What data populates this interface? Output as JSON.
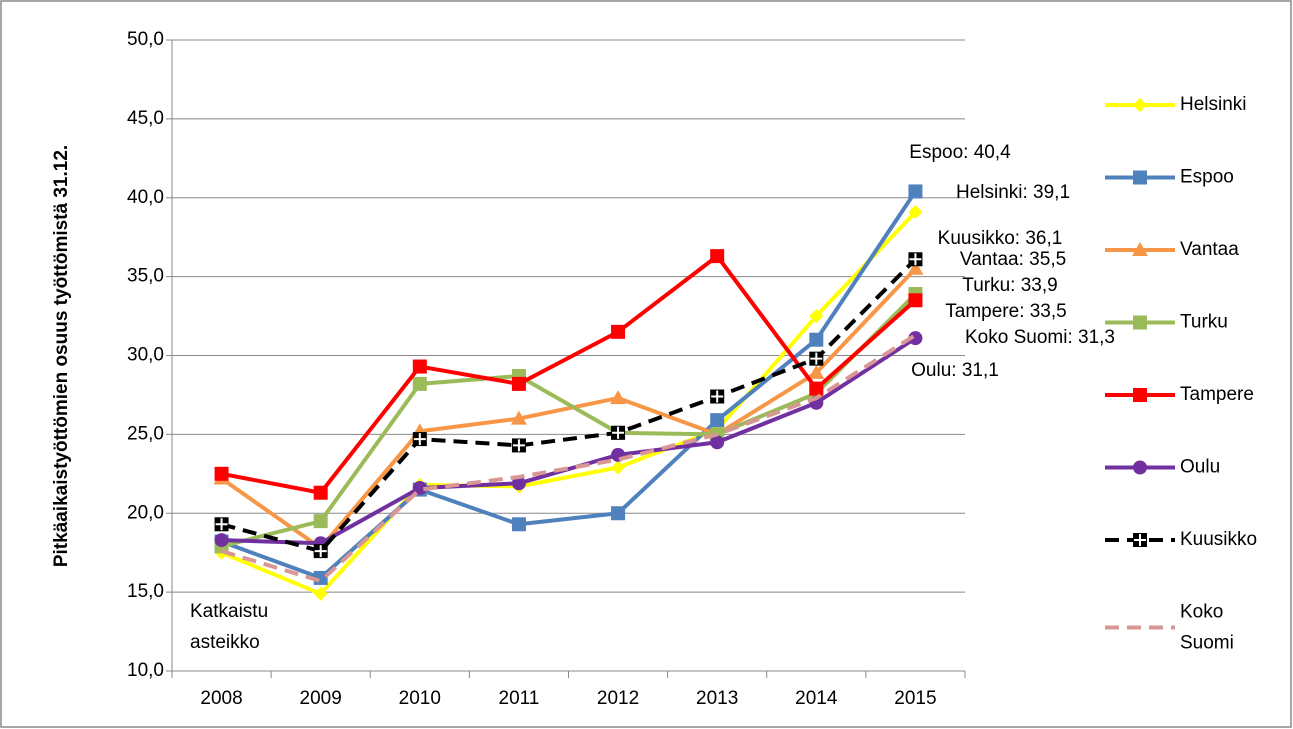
{
  "chart_data": {
    "type": "line",
    "ylabel": "Pitkäaikaistyöttömien osuus työttömistä 31.12.",
    "categories": [
      "2008",
      "2009",
      "2010",
      "2011",
      "2012",
      "2013",
      "2014",
      "2015"
    ],
    "ylim": [
      10,
      50
    ],
    "yticks": [
      {
        "value": 10,
        "label": "10,0"
      },
      {
        "value": 15,
        "label": "15,0"
      },
      {
        "value": 20,
        "label": "20,0"
      },
      {
        "value": 25,
        "label": "25,0"
      },
      {
        "value": 30,
        "label": "30,0"
      },
      {
        "value": 35,
        "label": "35,0"
      },
      {
        "value": 40,
        "label": "40,0"
      },
      {
        "value": 45,
        "label": "45,0"
      },
      {
        "value": 50,
        "label": "50,0"
      }
    ],
    "grid": true,
    "legend": "right",
    "annotation": [
      "Katkaistu",
      "asteikko"
    ],
    "series": [
      {
        "name": "Helsinki",
        "color": "#ffff00",
        "marker": "diamond",
        "values": [
          17.5,
          14.9,
          21.8,
          21.7,
          22.9,
          25.3,
          32.5,
          39.1
        ],
        "value_labels": [
          null,
          null,
          null,
          null,
          null,
          null,
          null,
          "Helsinki: 39,1"
        ]
      },
      {
        "name": "Espoo",
        "color": "#4f81bd",
        "marker": "square",
        "values": [
          18.2,
          15.9,
          21.5,
          19.3,
          20.0,
          25.9,
          31.0,
          40.4
        ],
        "value_labels": [
          null,
          null,
          null,
          null,
          null,
          null,
          null,
          "Espoo: 40,4"
        ]
      },
      {
        "name": "Vantaa",
        "color": "#f79646",
        "marker": "triangle",
        "values": [
          22.2,
          17.8,
          25.2,
          26.0,
          27.3,
          25.0,
          28.9,
          35.5
        ],
        "value_labels": [
          null,
          null,
          null,
          null,
          null,
          null,
          null,
          "Vantaa: 35,5"
        ]
      },
      {
        "name": "Turku",
        "color": "#9bbb59",
        "marker": "square",
        "values": [
          17.9,
          19.5,
          28.2,
          28.7,
          25.1,
          25.0,
          27.6,
          33.9
        ],
        "value_labels": [
          null,
          null,
          null,
          null,
          null,
          null,
          null,
          "Turku: 33,9"
        ]
      },
      {
        "name": "Tampere",
        "color": "#ff0000",
        "marker": "square",
        "values": [
          22.5,
          21.3,
          29.3,
          28.2,
          31.5,
          36.3,
          27.9,
          33.5
        ],
        "value_labels": [
          null,
          null,
          null,
          null,
          null,
          null,
          null,
          "Tampere: 33,5"
        ]
      },
      {
        "name": "Oulu",
        "color": "#7030a0",
        "marker": "circle",
        "values": [
          18.3,
          18.1,
          21.6,
          21.9,
          23.7,
          24.5,
          27.0,
          31.1
        ],
        "value_labels": [
          null,
          null,
          null,
          null,
          null,
          null,
          null,
          "Oulu: 31,1"
        ]
      },
      {
        "name": "Kuusikko",
        "color": "#000000",
        "marker": "cross-square",
        "dashed": true,
        "values": [
          19.3,
          17.6,
          24.7,
          24.3,
          25.1,
          27.4,
          29.8,
          36.1
        ],
        "value_labels": [
          null,
          null,
          null,
          null,
          null,
          null,
          null,
          "Kuusikko: 36,1"
        ]
      },
      {
        "name": "Koko Suomi",
        "color": "#d99694",
        "marker": "none",
        "dashed": true,
        "values": [
          17.6,
          15.7,
          21.5,
          22.3,
          23.4,
          25.0,
          27.3,
          31.3
        ],
        "value_labels": [
          null,
          null,
          null,
          null,
          null,
          null,
          null,
          "Koko Suomi: 31,3"
        ]
      }
    ]
  }
}
